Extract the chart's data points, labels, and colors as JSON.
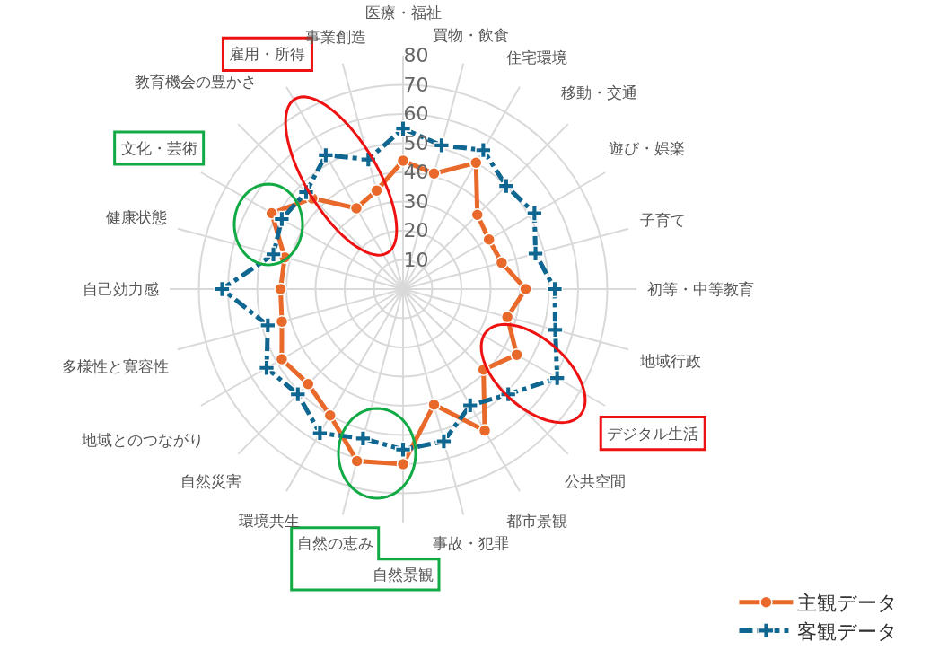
{
  "chart_data": {
    "type": "radar",
    "categories": [
      "医療・福祉",
      "買物・飲食",
      "住宅環境",
      "移動・交通",
      "遊び・娯楽",
      "子育て",
      "初等・中等教育",
      "地域行政",
      "デジタル生活",
      "公共空間",
      "都市景観",
      "事故・犯罪",
      "自然景観",
      "自然の恵み",
      "環境共生",
      "自然災害",
      "地域とのつながり",
      "多様性と寛容性",
      "自己効力感",
      "健康状態",
      "文化・芸術",
      "教育機会の豊かさ",
      "雇用・所得",
      "事業創造"
    ],
    "series": [
      {
        "name": "主観データ",
        "color": "#e8692a",
        "marker": "circle",
        "line_style": "solid",
        "values": [
          44,
          41,
          50,
          36,
          34,
          35,
          42,
          37,
          45,
          39,
          56,
          41,
          60,
          61,
          50,
          46,
          48,
          43,
          42,
          42,
          52,
          44,
          32,
          35
        ]
      },
      {
        "name": "客観データ",
        "color": "#0f6690",
        "marker": "cross",
        "line_style": "dashed",
        "values": [
          55,
          51,
          55,
          50,
          52,
          47,
          52,
          54,
          61,
          51,
          46,
          54,
          55,
          53,
          57,
          51,
          54,
          48,
          62,
          46,
          48,
          47,
          53,
          46
        ]
      }
    ],
    "ylim": [
      0,
      80
    ],
    "yticks": [
      10,
      20,
      30,
      40,
      50,
      60,
      70,
      80
    ],
    "grid": true,
    "legend": "bottom right"
  }
}
